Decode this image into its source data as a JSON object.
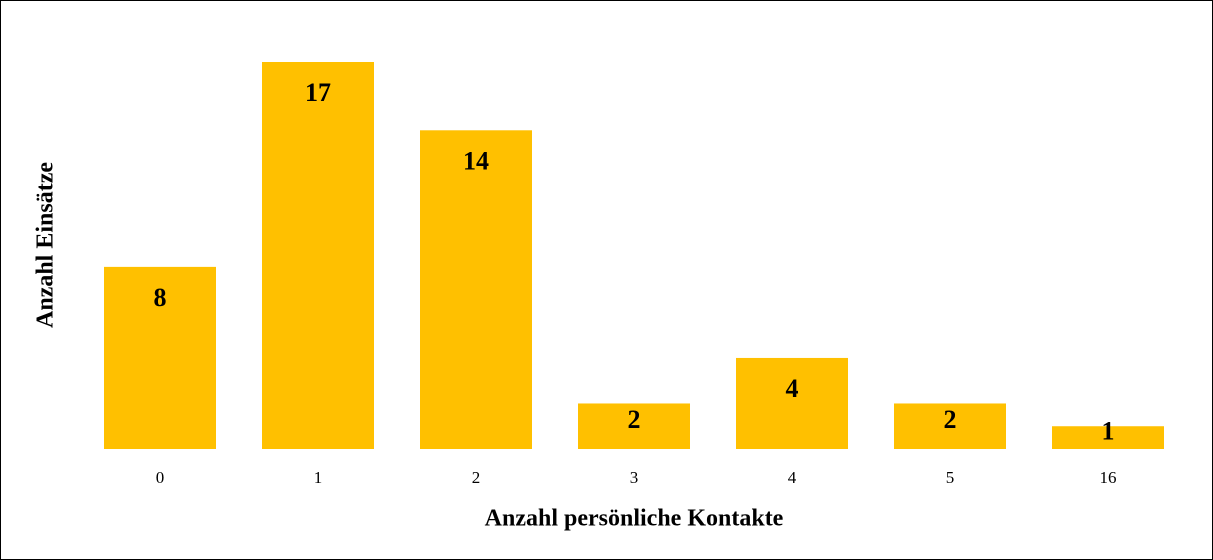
{
  "chart_data": {
    "type": "bar",
    "x_label": "Anzahl persönliche Kontakte",
    "y_label": "Anzahl Einsätze",
    "categories": [
      "0",
      "1",
      "2",
      "3",
      "4",
      "5",
      "16"
    ],
    "values": [
      8,
      17,
      14,
      2,
      4,
      2,
      1
    ],
    "color": "#ffc000"
  }
}
